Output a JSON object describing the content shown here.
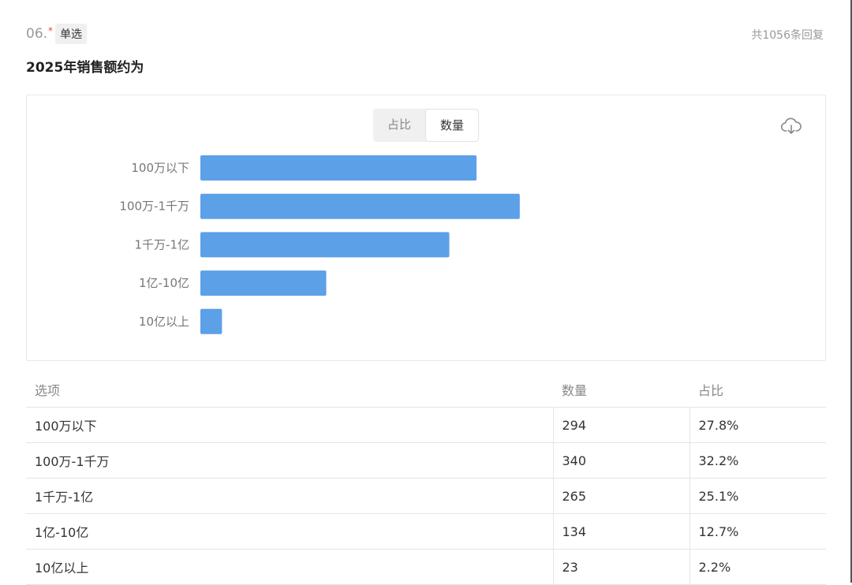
{
  "question": {
    "number": "06.",
    "required_mark": "*",
    "type": "单选",
    "title": "2025年销售额约为",
    "replies": "共1056条回复"
  },
  "toggle": {
    "percent_label": "占比",
    "count_label": "数量",
    "active": "数量"
  },
  "icons": {
    "download": "cloud-download-icon"
  },
  "colors": {
    "bar": "#5ca0e8"
  },
  "chart_data": {
    "type": "bar",
    "orientation": "horizontal",
    "categories": [
      "100万以下",
      "100万-1千万",
      "1千万-1亿",
      "1亿-10亿",
      "10亿以上"
    ],
    "values": [
      294,
      340,
      265,
      134,
      23
    ],
    "xlim": [
      0,
      650
    ],
    "grid": false
  },
  "table": {
    "headers": [
      "选项",
      "数量",
      "占比"
    ],
    "rows": [
      [
        "100万以下",
        "294",
        "27.8%"
      ],
      [
        "100万-1千万",
        "340",
        "32.2%"
      ],
      [
        "1千万-1亿",
        "265",
        "25.1%"
      ],
      [
        "1亿-10亿",
        "134",
        "12.7%"
      ],
      [
        "10亿以上",
        "23",
        "2.2%"
      ]
    ]
  }
}
